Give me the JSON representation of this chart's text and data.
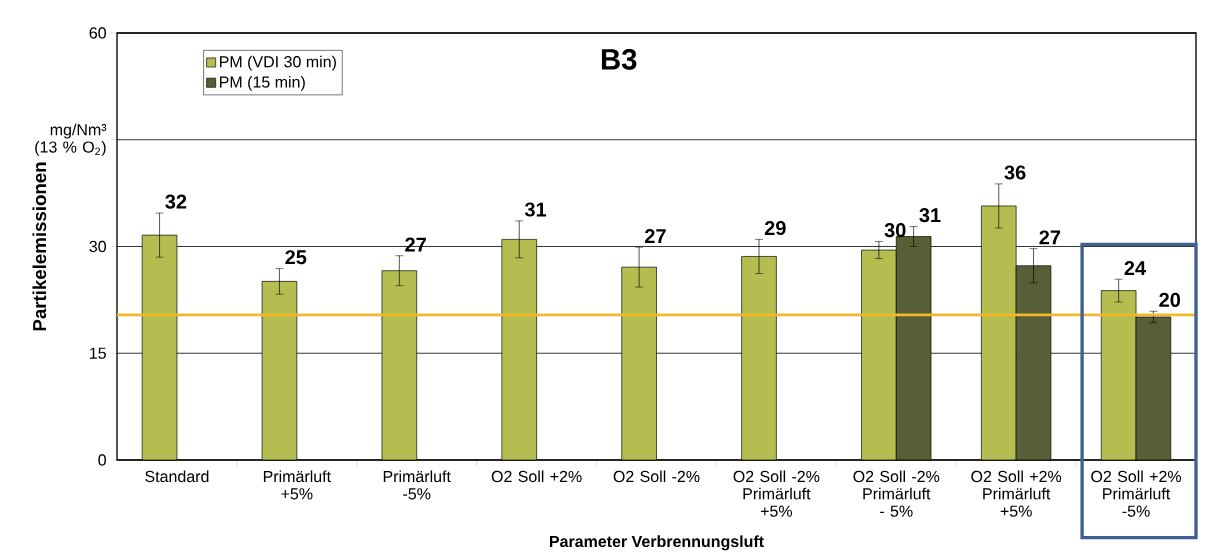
{
  "chart_data": {
    "type": "bar",
    "title": "B3",
    "xlabel": "Parameter Verbrennungsluft",
    "ylabel": "Partikelemissionen",
    "categories": [
      "Standard",
      "Primärluft +5%",
      "Primärluft -5%",
      "O2 Soll +2%",
      "O2 Soll -2%",
      "O2 Soll -2% Primärluft +5%",
      "O2 Soll -2% Primärluft - 5%",
      "O2 Soll +2% Primärluft +5%",
      "O2 Soll +2% Primärluft -5%"
    ],
    "series": [
      {
        "name": "PM (VDI 30 min)",
        "color": "#b5bd50",
        "values": [
          31.6,
          25.1,
          26.6,
          31.0,
          27.1,
          28.6,
          29.5,
          35.7,
          23.8
        ],
        "errors": [
          3.1,
          1.8,
          2.1,
          2.6,
          2.8,
          2.4,
          1.2,
          3.1,
          1.6
        ],
        "value_labels": [
          "32",
          "25",
          "27",
          "31",
          "27",
          "29",
          "30",
          "36",
          "24"
        ]
      },
      {
        "name": "PM (15 min)",
        "color": "#575f37",
        "values": [
          null,
          null,
          null,
          null,
          null,
          null,
          31.4,
          27.3,
          20.1
        ],
        "errors": [
          null,
          null,
          null,
          null,
          null,
          null,
          1.4,
          2.4,
          0.8
        ],
        "value_labels": [
          null,
          null,
          null,
          null,
          null,
          null,
          "31",
          "27",
          "20"
        ]
      }
    ],
    "ylim": [
      0,
      60
    ],
    "yticks": [
      0,
      15,
      30,
      {
        "value": 45,
        "label": "mg/Nm³ (13 % O$_{2}$)"
      },
      60
    ],
    "grid": "y",
    "legend": "top left",
    "ref_lines": [
      {
        "axis": "y",
        "value": 20.4,
        "color": "#f2b82e"
      }
    ]
  }
}
